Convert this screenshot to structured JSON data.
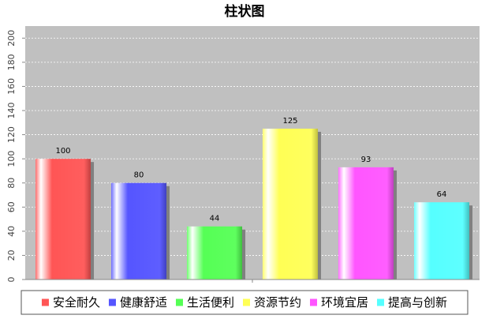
{
  "chart_data": {
    "type": "bar",
    "title": "柱状图",
    "xlabel": "",
    "ylabel": "",
    "ylim": [
      0,
      210
    ],
    "yticks": [
      0,
      20,
      40,
      60,
      80,
      100,
      120,
      140,
      160,
      180,
      200
    ],
    "grid": true,
    "legend_position": "bottom",
    "background_color": "#c0c0c0",
    "categories": [
      "安全耐久",
      "健康舒适",
      "生活便利",
      "资源节约",
      "环境宜居",
      "提高与创新"
    ],
    "values": [
      100,
      80,
      44,
      125,
      93,
      64
    ],
    "data_labels": [
      "100",
      "80",
      "44",
      "125",
      "93",
      "64"
    ],
    "colors": [
      "#ff5555",
      "#5555ff",
      "#55ff55",
      "#ffff55",
      "#ff55ff",
      "#55ffff"
    ]
  }
}
